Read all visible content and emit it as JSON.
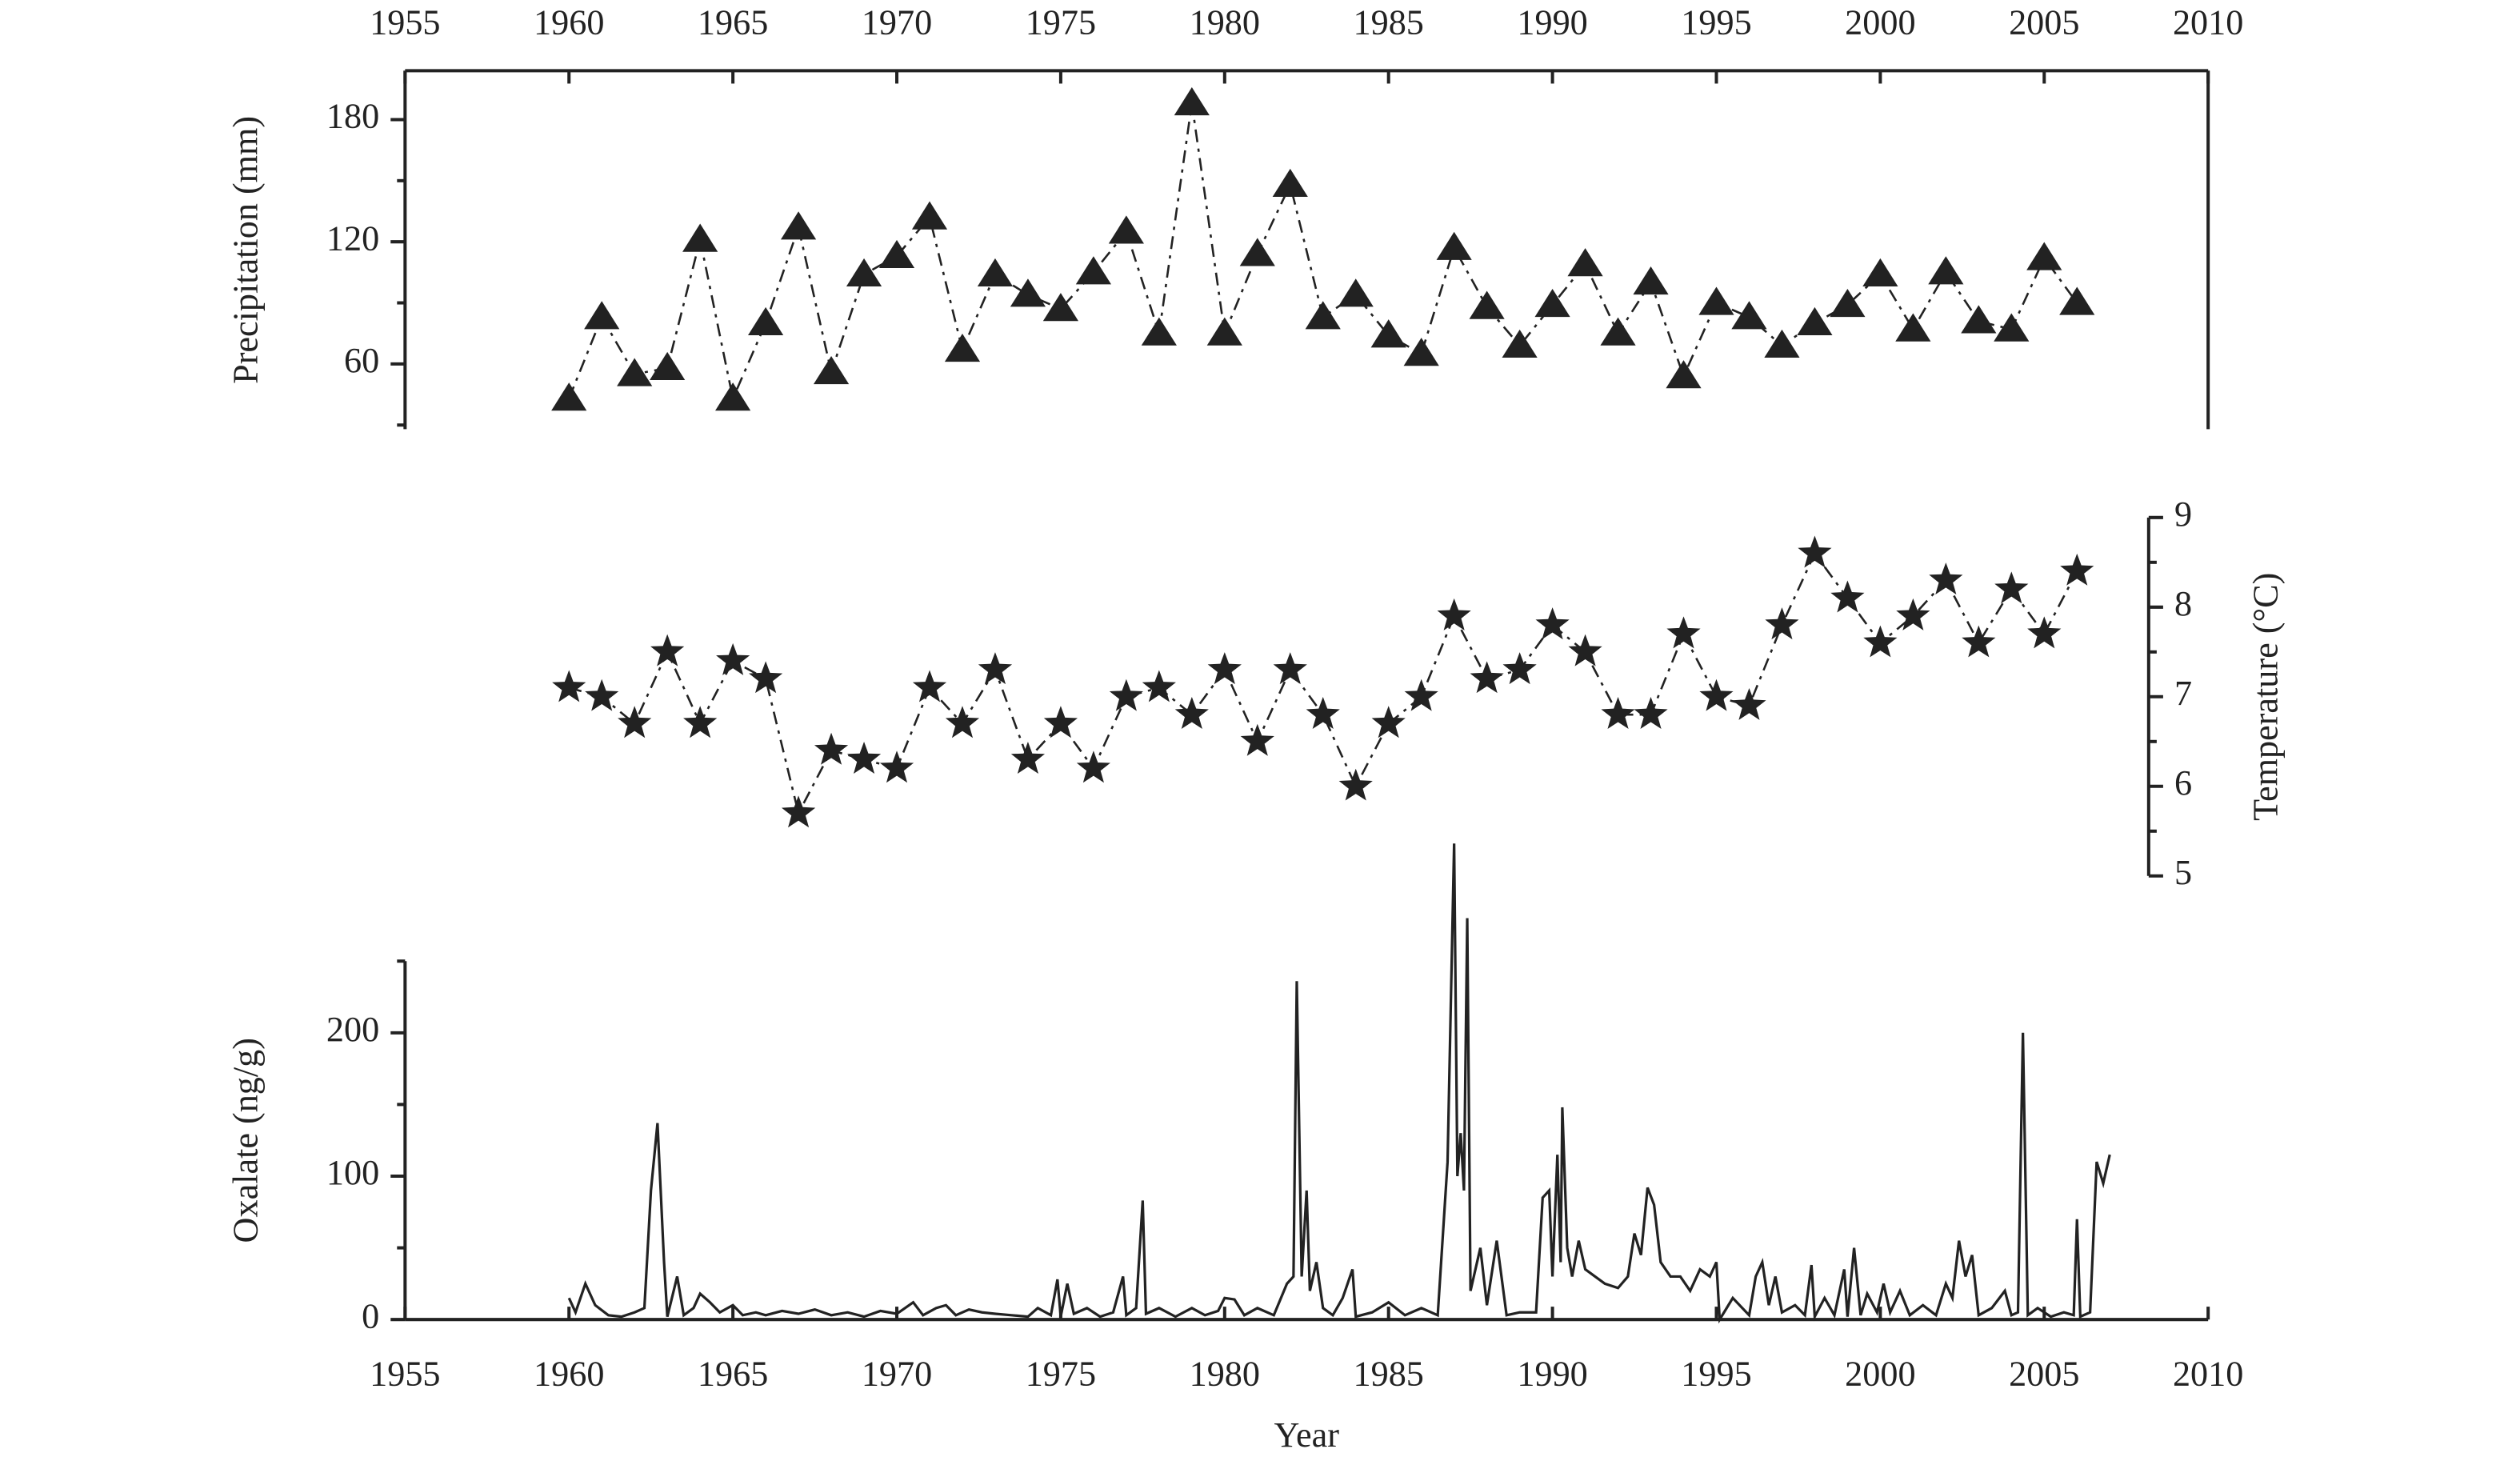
{
  "chart_data": [
    {
      "type": "line",
      "ylabel": "Precipitation (mm)",
      "xlim": [
        1955,
        2010
      ],
      "xticks": [
        1955,
        1960,
        1965,
        1970,
        1975,
        1980,
        1985,
        1990,
        1995,
        2000,
        2005,
        2010
      ],
      "xaxis_position": "top",
      "ylim": [
        28,
        204
      ],
      "yticks": [
        60,
        120,
        180
      ],
      "minor_yticks": [
        30,
        90,
        150
      ],
      "yaxis_position": "left",
      "marker": "triangle",
      "line_style": "dashdot",
      "color": "#222",
      "x": [
        1960,
        1961,
        1962,
        1963,
        1964,
        1965,
        1966,
        1967,
        1968,
        1969,
        1970,
        1971,
        1972,
        1973,
        1974,
        1975,
        1976,
        1977,
        1978,
        1979,
        1980,
        1981,
        1982,
        1983,
        1984,
        1985,
        1986,
        1987,
        1988,
        1989,
        1990,
        1991,
        1992,
        1993,
        1994,
        1995,
        1996,
        1997,
        1998,
        1999,
        2000,
        2001,
        2002,
        2003,
        2004,
        2005,
        2006
      ],
      "values": [
        43,
        83,
        55,
        58,
        121,
        43,
        80,
        127,
        56,
        104,
        113,
        132,
        67,
        104,
        94,
        87,
        105,
        125,
        75,
        188,
        75,
        114,
        148,
        83,
        94,
        74,
        65,
        117,
        88,
        69,
        89,
        109,
        75,
        100,
        54,
        90,
        83,
        69,
        80,
        89,
        104,
        77,
        105,
        81,
        77,
        112,
        90
      ]
    },
    {
      "type": "line",
      "ylabel": "Temperature (°C)",
      "xlim": [
        1955,
        2010
      ],
      "ylim": [
        5,
        9
      ],
      "yticks": [
        5,
        6,
        7,
        8,
        9
      ],
      "minor_yticks": [
        5.5,
        6.5,
        7.5,
        8.5
      ],
      "yaxis_position": "right",
      "marker": "star",
      "line_style": "dashdot",
      "color": "#222",
      "x": [
        1960,
        1961,
        1962,
        1963,
        1964,
        1965,
        1966,
        1967,
        1968,
        1969,
        1970,
        1971,
        1972,
        1973,
        1974,
        1975,
        1976,
        1977,
        1978,
        1979,
        1980,
        1981,
        1982,
        1983,
        1984,
        1985,
        1986,
        1987,
        1988,
        1989,
        1990,
        1991,
        1992,
        1993,
        1994,
        1995,
        1996,
        1997,
        1998,
        1999,
        2000,
        2001,
        2002,
        2003,
        2004,
        2005,
        2006
      ],
      "values": [
        7.1,
        7.0,
        6.7,
        7.5,
        6.7,
        7.4,
        7.2,
        5.7,
        6.4,
        6.3,
        6.2,
        7.1,
        6.7,
        7.3,
        6.3,
        6.7,
        6.2,
        7.0,
        7.1,
        6.8,
        7.3,
        6.5,
        7.3,
        6.8,
        6.0,
        6.7,
        7.0,
        7.9,
        7.2,
        7.3,
        7.8,
        7.5,
        6.8,
        6.8,
        7.7,
        7.0,
        6.9,
        7.8,
        8.6,
        8.1,
        7.6,
        7.9,
        8.3,
        7.6,
        8.2,
        7.7,
        8.4
      ]
    },
    {
      "type": "line",
      "ylabel": "Oxalate (ng/g)",
      "xlabel": "Year",
      "xlim": [
        1955,
        2010
      ],
      "xticks": [
        1955,
        1960,
        1965,
        1970,
        1975,
        1980,
        1985,
        1990,
        1995,
        2000,
        2005,
        2010
      ],
      "xaxis_position": "bottom",
      "ylim": [
        0,
        250
      ],
      "yticks": [
        0,
        100,
        200
      ],
      "minor_yticks": [
        50,
        150,
        250
      ],
      "yaxis_position": "left",
      "marker": "none",
      "line_style": "solid",
      "color": "#222",
      "x": [
        1960.0,
        1960.2,
        1960.5,
        1960.8,
        1961.2,
        1961.6,
        1962.0,
        1962.3,
        1962.5,
        1962.7,
        1962.9,
        1963.0,
        1963.3,
        1963.5,
        1963.8,
        1964.0,
        1964.3,
        1964.6,
        1965.0,
        1965.3,
        1965.7,
        1966.0,
        1966.5,
        1967.0,
        1967.5,
        1968.0,
        1968.5,
        1969.0,
        1969.5,
        1970.0,
        1970.5,
        1970.8,
        1971.2,
        1971.5,
        1971.8,
        1972.2,
        1972.6,
        1973.0,
        1973.5,
        1974.0,
        1974.3,
        1974.7,
        1974.9,
        1975.0,
        1975.2,
        1975.4,
        1975.8,
        1976.2,
        1976.6,
        1976.9,
        1977.0,
        1977.3,
        1977.5,
        1977.6,
        1978.0,
        1978.5,
        1979.0,
        1979.4,
        1979.8,
        1980.0,
        1980.3,
        1980.6,
        1981.0,
        1981.5,
        1981.9,
        1982.1,
        1982.2,
        1982.35,
        1982.5,
        1982.6,
        1982.8,
        1983.0,
        1983.3,
        1983.6,
        1983.9,
        1984.0,
        1984.5,
        1985.0,
        1985.5,
        1986.0,
        1986.5,
        1986.8,
        1987.0,
        1987.1,
        1987.2,
        1987.3,
        1987.4,
        1987.5,
        1987.8,
        1988.0,
        1988.3,
        1988.6,
        1989.0,
        1989.5,
        1989.7,
        1989.9,
        1990.0,
        1990.15,
        1990.25,
        1990.3,
        1990.45,
        1990.6,
        1990.8,
        1991.0,
        1991.3,
        1991.6,
        1992.0,
        1992.3,
        1992.5,
        1992.7,
        1992.9,
        1993.1,
        1993.3,
        1993.6,
        1993.9,
        1994.2,
        1994.5,
        1994.8,
        1995.0,
        1995.1,
        1995.5,
        1996.0,
        1996.2,
        1996.4,
        1996.6,
        1996.8,
        1997.0,
        1997.4,
        1997.7,
        1997.9,
        1998.0,
        1998.3,
        1998.6,
        1998.9,
        1999.0,
        1999.2,
        1999.4,
        1999.6,
        1999.9,
        2000.1,
        2000.3,
        2000.6,
        2000.9,
        2001.3,
        2001.7,
        2002.0,
        2002.2,
        2002.4,
        2002.6,
        2002.8,
        2003.0,
        2003.4,
        2003.8,
        2004.0,
        2004.2,
        2004.35,
        2004.5,
        2004.8,
        2005.2,
        2005.6,
        2005.9,
        2006.0,
        2006.1,
        2006.4,
        2006.6,
        2006.8,
        2007.0
      ],
      "values": [
        15,
        5,
        25,
        10,
        3,
        2,
        5,
        8,
        90,
        137,
        40,
        2,
        30,
        3,
        8,
        18,
        12,
        5,
        10,
        3,
        5,
        3,
        6,
        4,
        7,
        3,
        5,
        2,
        6,
        4,
        12,
        3,
        8,
        10,
        3,
        7,
        5,
        4,
        3,
        2,
        8,
        3,
        28,
        2,
        25,
        4,
        8,
        2,
        5,
        30,
        3,
        8,
        83,
        4,
        8,
        2,
        8,
        3,
        6,
        15,
        14,
        3,
        8,
        3,
        25,
        30,
        236,
        30,
        90,
        20,
        40,
        8,
        3,
        15,
        35,
        2,
        5,
        12,
        3,
        8,
        3,
        110,
        332,
        100,
        130,
        90,
        280,
        20,
        50,
        10,
        55,
        3,
        5,
        5,
        85,
        90,
        30,
        115,
        40,
        148,
        50,
        30,
        55,
        35,
        30,
        25,
        22,
        30,
        60,
        45,
        92,
        80,
        40,
        30,
        30,
        20,
        35,
        30,
        40,
        0,
        15,
        3,
        30,
        40,
        10,
        30,
        5,
        10,
        3,
        38,
        2,
        15,
        3,
        35,
        2,
        50,
        3,
        18,
        5,
        25,
        5,
        20,
        3,
        10,
        3,
        25,
        15,
        55,
        30,
        45,
        3,
        8,
        20,
        3,
        5,
        200,
        3,
        8,
        2,
        5,
        3,
        70,
        2,
        5,
        110,
        95,
        115
      ]
    }
  ]
}
